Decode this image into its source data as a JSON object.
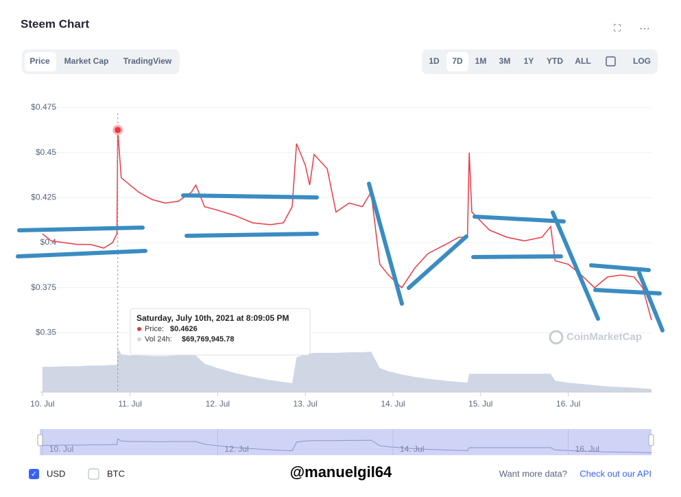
{
  "header": {
    "title": "Steem Chart",
    "tabs": [
      "Price",
      "Market Cap",
      "TradingView"
    ],
    "ranges": [
      "1D",
      "7D",
      "1M",
      "3M",
      "1Y",
      "YTD",
      "ALL"
    ],
    "log": "LOG"
  },
  "chart_data": {
    "type": "line",
    "x": [
      10.0,
      10.1,
      10.25,
      10.4,
      10.55,
      10.7,
      10.8,
      10.85,
      10.86,
      10.9,
      11.0,
      11.1,
      11.25,
      11.4,
      11.55,
      11.7,
      11.75,
      11.85,
      12.0,
      12.2,
      12.4,
      12.6,
      12.75,
      12.85,
      12.9,
      13.0,
      13.05,
      13.1,
      13.25,
      13.35,
      13.5,
      13.65,
      13.75,
      13.85,
      13.95,
      14.1,
      14.25,
      14.4,
      14.6,
      14.75,
      14.85,
      14.87,
      14.9,
      15.1,
      15.3,
      15.5,
      15.7,
      15.8,
      15.85,
      16.0,
      16.15,
      16.3,
      16.45,
      16.6,
      16.75,
      16.85,
      16.95
    ],
    "series": [
      {
        "name": "Price",
        "color": "#ea3943",
        "values": [
          0.405,
          0.401,
          0.4,
          0.399,
          0.399,
          0.397,
          0.4,
          0.405,
          0.4626,
          0.436,
          0.432,
          0.428,
          0.424,
          0.422,
          0.423,
          0.428,
          0.432,
          0.42,
          0.418,
          0.415,
          0.411,
          0.41,
          0.411,
          0.42,
          0.455,
          0.443,
          0.432,
          0.449,
          0.441,
          0.417,
          0.422,
          0.42,
          0.428,
          0.388,
          0.382,
          0.375,
          0.386,
          0.394,
          0.399,
          0.403,
          0.403,
          0.45,
          0.417,
          0.407,
          0.403,
          0.401,
          0.403,
          0.409,
          0.39,
          0.388,
          0.382,
          0.375,
          0.381,
          0.382,
          0.381,
          0.375,
          0.357
        ]
      },
      {
        "name": "Vol 24h",
        "color": "#cfd6e4",
        "axis": "y2",
        "values": [
          40000000,
          40000000,
          41000000,
          41000000,
          42000000,
          42000000,
          43000000,
          43000000,
          69769945.78,
          60000000,
          58000000,
          58000000,
          57000000,
          57000000,
          58000000,
          58000000,
          58000000,
          45000000,
          38000000,
          30000000,
          24000000,
          19000000,
          16000000,
          14000000,
          55000000,
          60000000,
          61000000,
          62000000,
          62000000,
          62000000,
          63000000,
          63000000,
          64000000,
          38000000,
          33000000,
          28000000,
          24000000,
          21000000,
          18000000,
          16000000,
          15000000,
          29000000,
          29000000,
          29000000,
          29000000,
          29000000,
          29000000,
          29000000,
          18000000,
          15000000,
          13000000,
          11000000,
          9000000,
          8000000,
          7000000,
          6000000,
          5000000
        ]
      }
    ],
    "xlim": [
      9.97,
      16.95
    ],
    "xticks": [
      {
        "value": 10,
        "label": "10. Jul"
      },
      {
        "value": 11,
        "label": "11. Jul"
      },
      {
        "value": 12,
        "label": "12. Jul"
      },
      {
        "value": 13,
        "label": "13. Jul"
      },
      {
        "value": 14,
        "label": "14. Jul"
      },
      {
        "value": 15,
        "label": "15. Jul"
      },
      {
        "value": 16,
        "label": "16. Jul"
      }
    ],
    "ylim": [
      0.317,
      0.475
    ],
    "yticks": [
      {
        "value": 0.475,
        "label": "$0.475"
      },
      {
        "value": 0.45,
        "label": "$0.45"
      },
      {
        "value": 0.425,
        "label": "$0.425"
      },
      {
        "value": 0.4,
        "label": "$0.4"
      },
      {
        "value": 0.375,
        "label": "$0.375"
      },
      {
        "value": 0.35,
        "label": "$0.35"
      }
    ],
    "y2lim": [
      0,
      450000000
    ],
    "grid": true,
    "watermark": "CoinMarketCap",
    "tooltip": {
      "title": "Saturday, July 10th, 2021 at 8:09:05 PM",
      "rows": [
        {
          "label": "Price:",
          "text": "$0.4626"
        },
        {
          "label": "Vol 24h:",
          "text": "$69,769,945.78"
        }
      ]
    }
  },
  "footer": {
    "currencies": [
      "USD",
      "BTC"
    ],
    "author": "@manuelgil64",
    "more": "Want more data?",
    "link": "Check out our API"
  }
}
